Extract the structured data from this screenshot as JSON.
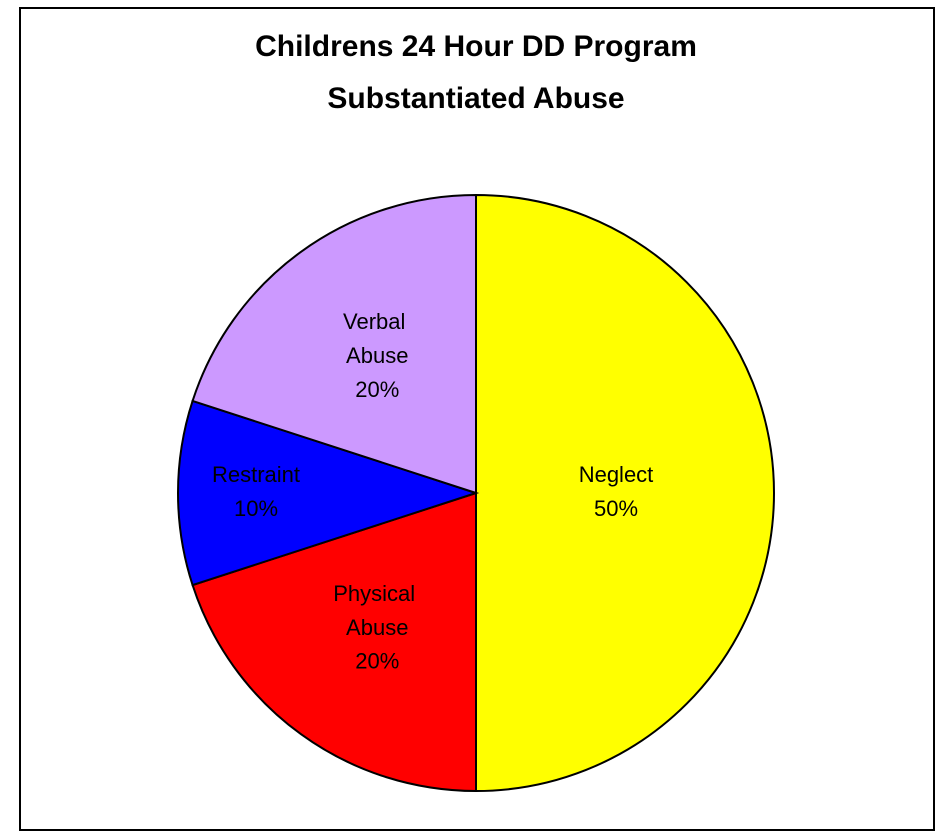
{
  "chart_data": {
    "type": "pie",
    "title": [
      "Childrens 24 Hour DD Program",
      "Substantiated Abuse"
    ],
    "categories": [
      "Neglect",
      "Physical Abuse",
      "Restraint",
      "Verbal Abuse"
    ],
    "values": [
      50,
      20,
      10,
      20
    ],
    "value_labels": [
      "50%",
      "20%",
      "10%",
      "20%"
    ],
    "colors": [
      "#ffff00",
      "#ff0000",
      "#0000ff",
      "#cc99ff"
    ]
  }
}
